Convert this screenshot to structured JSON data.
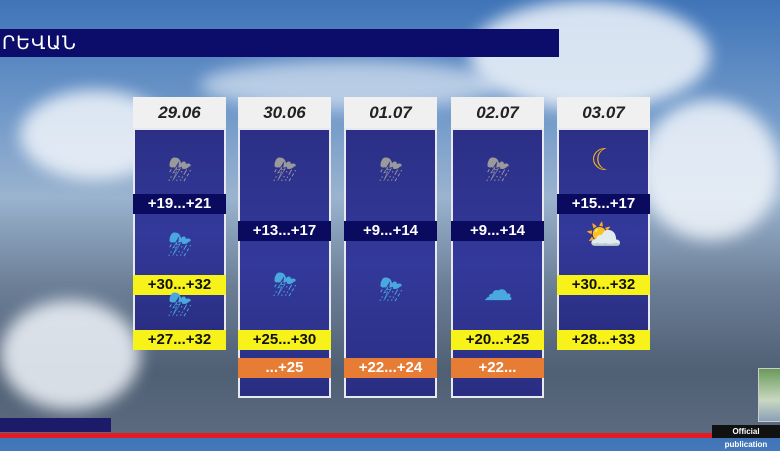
{
  "header": {
    "city_title": "ՐԵՎԱՆ"
  },
  "footer": {
    "official_label": "Official publication"
  },
  "colors": {
    "title_bg": "#0c0c6a",
    "night_bar": "#0a0b5e",
    "day_bar": "#f6f21a",
    "warm_bar": "#e77c35",
    "red_line": "#e31b23"
  },
  "days": [
    {
      "date": "29.06",
      "entries": [
        {
          "icon": "thunderstorm-grey-cloud-icon",
          "temp": "+19...+21",
          "kind": "night"
        },
        {
          "icon": "thunderstorm-blue-cloud-icon",
          "temp": "+30...+32",
          "kind": "day"
        },
        {
          "icon": "thunderstorm-blue-cloud-icon",
          "temp": "+27...+32",
          "kind": "day"
        }
      ]
    },
    {
      "date": "30.06",
      "entries": [
        {
          "icon": "thunderstorm-grey-cloud-icon",
          "temp": "+13...+17",
          "kind": "night"
        },
        {
          "icon": "thunderstorm-blue-cloud-icon",
          "temp": "+25...+30",
          "kind": "day"
        },
        {
          "icon": "",
          "temp": "...+25",
          "kind": "warm"
        }
      ]
    },
    {
      "date": "01.07",
      "entries": [
        {
          "icon": "thunderstorm-grey-cloud-icon",
          "temp": "+9...+14",
          "kind": "night"
        },
        {
          "icon": "thunderstorm-sun-cloud-icon",
          "temp": "+22...+24",
          "kind": "warm"
        }
      ]
    },
    {
      "date": "02.07",
      "entries": [
        {
          "icon": "thunderstorm-grey-cloud-icon",
          "temp": "+9...+14",
          "kind": "night"
        },
        {
          "icon": "blue-clouds-icon",
          "temp": "+20...+25",
          "kind": "day"
        },
        {
          "icon": "",
          "temp": "+22...",
          "kind": "warm"
        }
      ]
    },
    {
      "date": "03.07",
      "entries": [
        {
          "icon": "moon-cloud-icon",
          "temp": "+15...+17",
          "kind": "night"
        },
        {
          "icon": "sun-cloud-icon",
          "temp": "+30...+32",
          "kind": "day"
        },
        {
          "icon": "",
          "temp": "+28...+33",
          "kind": "day"
        }
      ]
    }
  ]
}
